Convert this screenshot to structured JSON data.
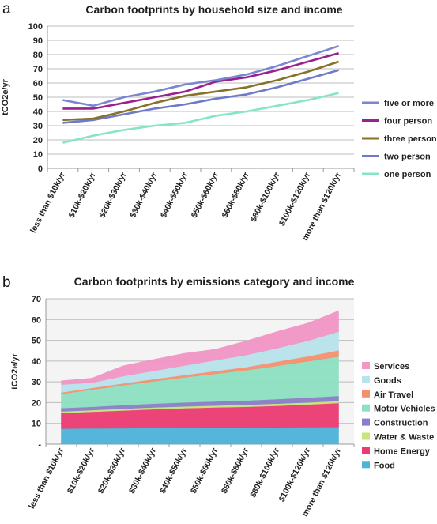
{
  "panel_labels": [
    "a",
    "b"
  ],
  "chart_data": [
    {
      "type": "line",
      "title": "Carbon footprints by household size and income",
      "xlabel": "",
      "ylabel": "tCO2e/yr",
      "ylim": [
        0,
        100
      ],
      "yticks": [
        "0",
        "10",
        "20",
        "30",
        "40",
        "50",
        "60",
        "70",
        "80",
        "90",
        "100"
      ],
      "categories": [
        "less than $10k/yr",
        "$10k-$20k/yr",
        "$20k-$30k/yr",
        "$30k-$40k/yr",
        "$40k-$50k/yr",
        "$50k-$60k/yr",
        "$60k-$80k/yr",
        "$80k-$100k/yr",
        "$100k-$120k/yr",
        "more than $120k/yr"
      ],
      "grid": true,
      "legend_position": "right",
      "series": [
        {
          "name": "five or more",
          "color": "#7b86d0",
          "values": [
            48,
            44,
            50,
            54,
            59,
            62,
            66,
            72,
            79,
            86
          ]
        },
        {
          "name": "four person",
          "color": "#9a1f8f",
          "values": [
            42,
            42,
            46,
            50,
            54,
            61,
            64,
            69,
            75,
            81
          ]
        },
        {
          "name": "three person",
          "color": "#86722b",
          "values": [
            34,
            35,
            40,
            46,
            51,
            54,
            57,
            62,
            68,
            75
          ]
        },
        {
          "name": "two person",
          "color": "#6d79c9",
          "values": [
            32,
            34,
            38,
            42,
            45,
            49,
            52,
            57,
            63,
            69
          ]
        },
        {
          "name": "one person",
          "color": "#86e6c3",
          "values": [
            18,
            23,
            27,
            30,
            32,
            37,
            40,
            44,
            48,
            53
          ]
        }
      ]
    },
    {
      "type": "area",
      "stacked": true,
      "title": "Carbon footprints by emissions category and income",
      "xlabel": "",
      "ylabel": "tCO2e/yr",
      "ylim": [
        0,
        70
      ],
      "yticks": [
        "-",
        "10",
        "20",
        "30",
        "40",
        "50",
        "60",
        "70"
      ],
      "categories": [
        "less than $10k/yr",
        "$10k-$20k/yr",
        "$20k-$30k/yr",
        "$30k-$40k/yr",
        "$40k-$50k/yr",
        "$50k-$60k/yr",
        "$60k-$80k/yr",
        "$80k-$100k/yr",
        "$100k-$120k/yr",
        "more than $120k/yr"
      ],
      "grid": true,
      "legend_position": "right",
      "series": [
        {
          "name": "Food",
          "color": "#4eb2da",
          "values": [
            7.5,
            7.6,
            7.7,
            7.8,
            7.9,
            8.0,
            8.0,
            8.1,
            8.2,
            8.3
          ]
        },
        {
          "name": "Home Energy",
          "color": "#ec3b73",
          "values": [
            7.5,
            8.0,
            8.5,
            9.0,
            9.4,
            9.7,
            10.0,
            10.4,
            10.9,
            11.5
          ]
        },
        {
          "name": "Water & Waste",
          "color": "#c6e67a",
          "values": [
            0.8,
            0.8,
            0.9,
            0.9,
            0.9,
            0.9,
            1.0,
            1.0,
            1.0,
            1.0
          ]
        },
        {
          "name": "Construction",
          "color": "#8a7ec8",
          "values": [
            1.6,
            1.6,
            1.7,
            1.8,
            1.9,
            2.0,
            2.0,
            2.2,
            2.3,
            2.4
          ]
        },
        {
          "name": "Motor Vehicles",
          "color": "#8ee0c2",
          "values": [
            6.8,
            8.3,
            9.5,
            10.8,
            12.1,
            13.3,
            14.6,
            16.0,
            17.5,
            19.0
          ]
        },
        {
          "name": "Air Travel",
          "color": "#f4906f",
          "values": [
            0.7,
            0.8,
            0.9,
            1.0,
            1.1,
            1.3,
            1.5,
            2.0,
            2.4,
            3.0
          ]
        },
        {
          "name": "Goods",
          "color": "#b9e3ec",
          "values": [
            3.8,
            2.5,
            3.5,
            4.0,
            4.6,
            5.2,
            5.8,
            6.5,
            7.5,
            9.0
          ]
        },
        {
          "name": "Services",
          "color": "#f296c5",
          "values": [
            1.8,
            2.2,
            5.0,
            5.5,
            5.8,
            5.3,
            6.8,
            8.0,
            8.5,
            10.0
          ]
        }
      ]
    }
  ]
}
